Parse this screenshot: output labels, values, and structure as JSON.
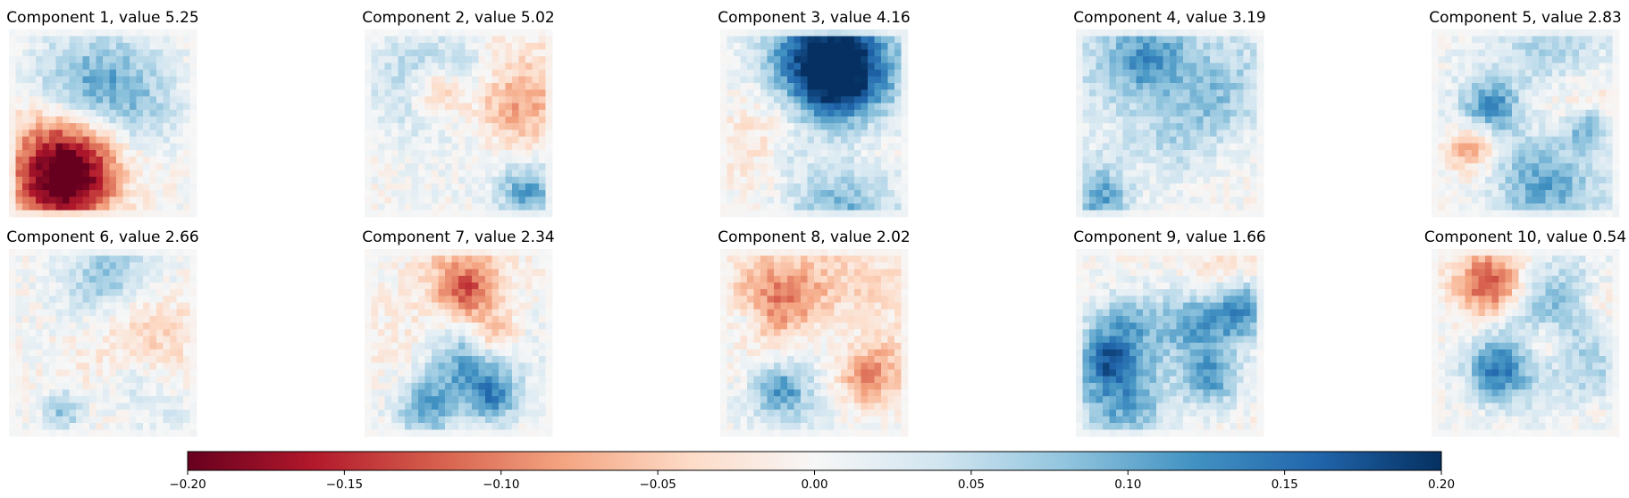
{
  "chart_data": {
    "type": "heatmap",
    "panels": [
      {
        "component": 1,
        "value": 5.25,
        "title": "Component 1, value 5.25"
      },
      {
        "component": 2,
        "value": 5.02,
        "title": "Component 2, value 5.02"
      },
      {
        "component": 3,
        "value": 4.16,
        "title": "Component 3, value 4.16"
      },
      {
        "component": 4,
        "value": 3.19,
        "title": "Component 4, value 3.19"
      },
      {
        "component": 5,
        "value": 2.83,
        "title": "Component 5, value 2.83"
      },
      {
        "component": 6,
        "value": 2.66,
        "title": "Component 6, value 2.66"
      },
      {
        "component": 7,
        "value": 2.34,
        "title": "Component 7, value 2.34"
      },
      {
        "component": 8,
        "value": 2.02,
        "title": "Component 8, value 2.02"
      },
      {
        "component": 9,
        "value": 1.66,
        "title": "Component 9, value 1.66"
      },
      {
        "component": 10,
        "value": 0.54,
        "title": "Component 10, value 0.54"
      }
    ],
    "grid_size": 28,
    "colormap": "RdBu",
    "colorbar": {
      "vmin": -0.2,
      "vmax": 0.2,
      "ticks": [
        "−0.20",
        "−0.15",
        "−0.10",
        "−0.05",
        "0.00",
        "0.05",
        "0.10",
        "0.15",
        "0.20"
      ],
      "orientation": "horizontal"
    },
    "axes_visible": false
  }
}
